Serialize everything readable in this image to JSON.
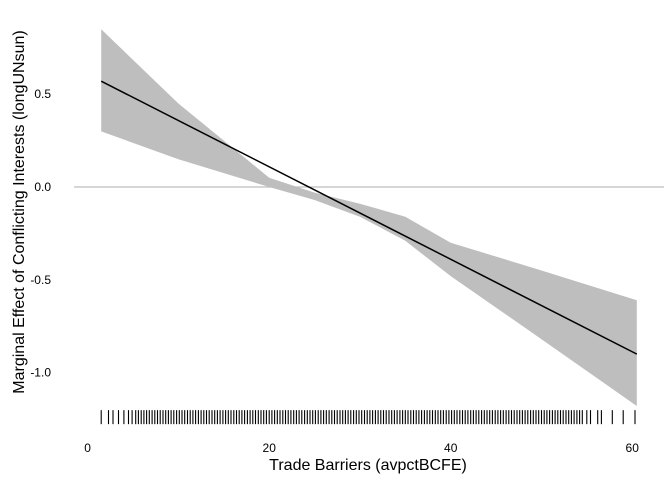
{
  "chart_data": {
    "type": "line",
    "title": "",
    "xlabel": "Trade Barriers (avpctBCFE)",
    "ylabel": "Marginal Effect of Conflicting Interests (longUNsun)",
    "xlim": [
      -1.5,
      63.5
    ],
    "ylim": [
      -1.32,
      0.9
    ],
    "x_ticks": [
      0,
      20,
      40,
      60
    ],
    "x_tick_labels": [
      "0",
      "20",
      "40",
      "60"
    ],
    "y_ticks": [
      0.5,
      0.0,
      -0.5,
      -1.0
    ],
    "y_tick_labels": [
      "0.5",
      "0.0",
      "-0.5",
      "-1.0"
    ],
    "grid": false,
    "reference_line": {
      "y": 0.0,
      "color": "#bdbdbd"
    },
    "estimate_line": {
      "x": [
        1.5,
        60.5
      ],
      "y": [
        0.57,
        -0.9
      ],
      "color": "#000000"
    },
    "confidence_band": {
      "color": "#bebebe",
      "x": [
        1.5,
        10,
        20,
        25,
        30,
        35,
        40,
        50,
        60.5
      ],
      "upper": [
        0.85,
        0.45,
        0.05,
        -0.03,
        -0.09,
        -0.16,
        -0.3,
        -0.45,
        -0.61
      ],
      "lower": [
        0.3,
        0.15,
        0.0,
        -0.07,
        -0.16,
        -0.29,
        -0.48,
        -0.82,
        -1.18
      ]
    },
    "rug": {
      "y": -1.24,
      "color": "#000000",
      "x": [
        1.5,
        2.3,
        2.8,
        3.4,
        4.0,
        4.5,
        4.9,
        5.3,
        5.6,
        5.9,
        6.2,
        6.5,
        6.8,
        7.1,
        7.4,
        7.7,
        8.0,
        8.3,
        8.6,
        8.9,
        9.2,
        9.5,
        9.8,
        10.1,
        10.4,
        10.7,
        11.0,
        11.3,
        11.6,
        11.9,
        12.2,
        12.5,
        12.8,
        13.1,
        13.4,
        13.7,
        14.0,
        14.3,
        14.6,
        14.9,
        15.2,
        15.5,
        15.8,
        16.1,
        16.4,
        16.7,
        17.0,
        17.3,
        17.6,
        17.9,
        18.2,
        18.5,
        18.8,
        19.1,
        19.4,
        19.7,
        20.0,
        20.3,
        20.6,
        20.9,
        21.2,
        21.5,
        21.8,
        22.1,
        22.4,
        22.7,
        23.0,
        23.3,
        23.6,
        23.9,
        24.2,
        24.5,
        24.8,
        25.1,
        25.4,
        25.7,
        26.0,
        26.3,
        26.6,
        26.9,
        27.2,
        27.5,
        27.8,
        28.1,
        28.4,
        28.7,
        29.0,
        29.3,
        29.6,
        29.9,
        30.2,
        30.5,
        30.8,
        31.1,
        31.4,
        31.7,
        32.0,
        32.3,
        32.6,
        32.9,
        33.2,
        33.5,
        33.8,
        34.1,
        34.4,
        34.7,
        35.0,
        35.3,
        35.6,
        35.9,
        36.2,
        36.5,
        36.8,
        37.1,
        37.4,
        37.7,
        38.0,
        38.3,
        38.6,
        38.9,
        39.2,
        39.5,
        39.8,
        40.1,
        40.4,
        40.7,
        41.0,
        41.3,
        41.6,
        41.9,
        42.2,
        42.5,
        42.8,
        43.1,
        43.4,
        43.7,
        44.0,
        44.3,
        44.6,
        44.9,
        45.2,
        45.5,
        45.8,
        46.1,
        46.4,
        46.7,
        47.0,
        47.3,
        47.6,
        47.9,
        48.2,
        48.5,
        48.8,
        49.1,
        49.4,
        49.7,
        50.0,
        50.3,
        50.6,
        50.9,
        51.2,
        51.5,
        51.8,
        52.1,
        52.4,
        52.7,
        53.0,
        53.3,
        53.6,
        53.9,
        54.2,
        54.5,
        55.0,
        55.4,
        56.2,
        56.6,
        57.8,
        59.0,
        60.3
      ]
    }
  }
}
